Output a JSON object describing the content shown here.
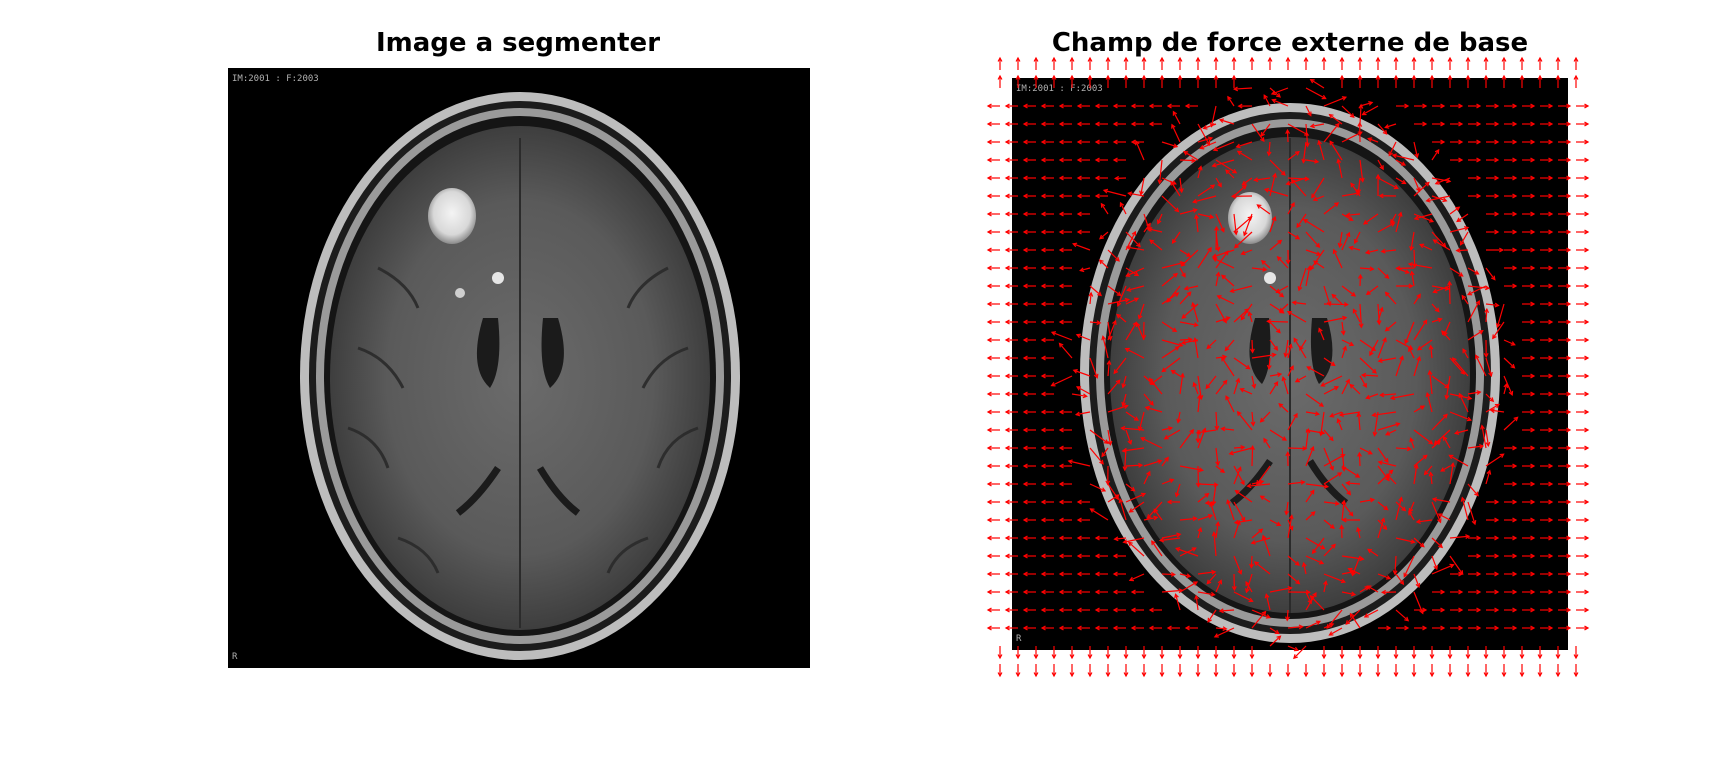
{
  "figure": {
    "left_panel": {
      "title": "Image a segmenter",
      "corner_text": "IM:2001 : F:2003",
      "corner_text_bottom": "R"
    },
    "right_panel": {
      "title": "Champ de force externe de base",
      "corner_text": "IM:2001 : F:2003",
      "corner_text_bottom": "R",
      "arrow_color": "#ff0000"
    }
  }
}
